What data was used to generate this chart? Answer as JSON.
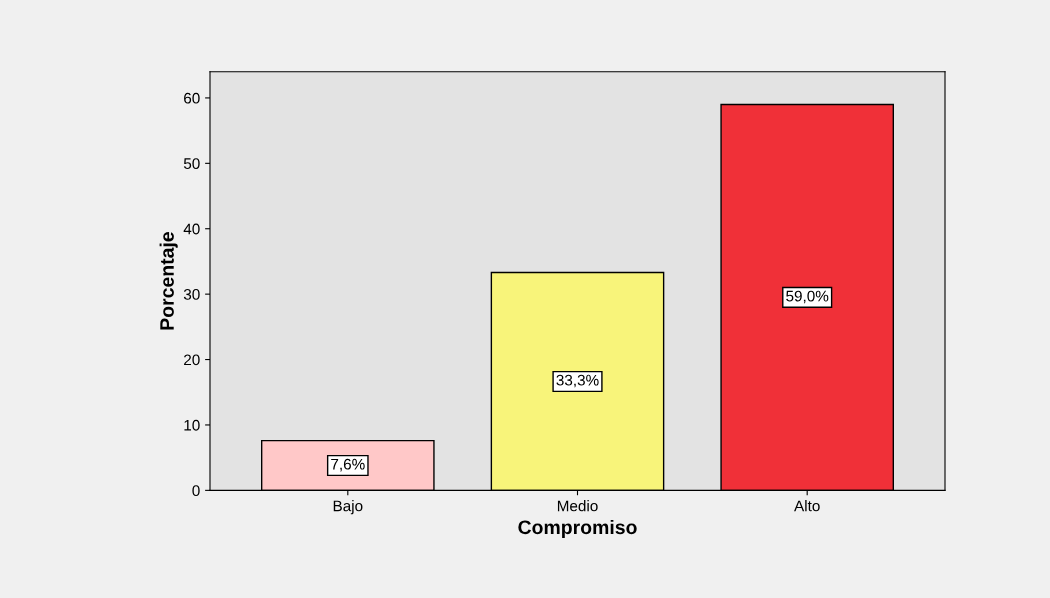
{
  "chart_data": {
    "type": "bar",
    "xlabel": "Compromiso",
    "ylabel": "Porcentaje",
    "categories": [
      "Bajo",
      "Medio",
      "Alto"
    ],
    "values": [
      7.6,
      33.3,
      59.0
    ],
    "colors": [
      "#ffc8c8",
      "#f8f47a",
      "#f03038"
    ],
    "value_labels": [
      "7,6%",
      "33,3%",
      "59,0%"
    ],
    "ylim": [
      0,
      64
    ],
    "yticks": [
      0,
      10,
      20,
      30,
      40,
      50,
      60
    ],
    "grid": false,
    "legend": false
  }
}
